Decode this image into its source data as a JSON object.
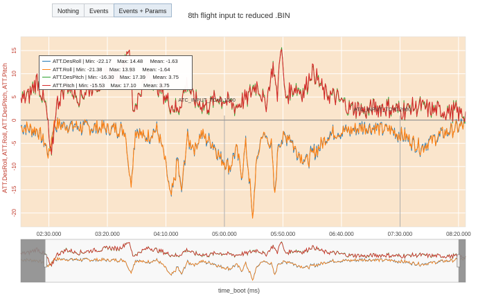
{
  "toolbar": {
    "buttons": [
      {
        "label": "Nothing",
        "active": false
      },
      {
        "label": "Events",
        "active": false
      },
      {
        "label": "Events + Params",
        "active": true
      }
    ]
  },
  "chart_data": {
    "type": "line",
    "title": "8th flight input tc reduced .BIN",
    "xlabel": "time_boot (ms)",
    "ylabel": "ATT.DesRoll, ATT.Roll, ATT.DesPitch, ATT.Pitch",
    "xlim": [
      "02:06.000",
      "08:26.000"
    ],
    "ylim": [
      -23,
      18
    ],
    "x_ticks": [
      "02:30.000",
      "03:20.000",
      "04:10.000",
      "05:00.000",
      "05:50.000",
      "06:40.000",
      "07:30.000",
      "08:20.000"
    ],
    "y_ticks": [
      15,
      10,
      5,
      0,
      -5,
      -10,
      -15,
      -20
    ],
    "grid": true,
    "background": "#fae5cc",
    "legend_position": "top-left",
    "series": [
      {
        "name": "ATT.DesRoll",
        "legend_text": "ATT.DesRoll | Min: -22.17    Max: 14.48     Mean: -1.63",
        "color": "#1f77b4",
        "min": -22.17,
        "max": 14.48,
        "mean": -1.63
      },
      {
        "name": "ATT.Roll",
        "legend_text": "ATT.Roll | Min: -21.38     Max: 13.93     Mean: -1.64",
        "color": "#ff7f0e",
        "min": -21.38,
        "max": 13.93,
        "mean": -1.64
      },
      {
        "name": "ATT.DesPitch",
        "legend_text": "ATT.DesPitch | Min: -16.30    Max: 17.39     Mean: 3.75",
        "color": "#2ca02c",
        "min": -16.3,
        "max": 17.39,
        "mean": 3.75
      },
      {
        "name": "ATT.Pitch",
        "legend_text": "ATT.Pitch | Min: -15.53    Max: 17.10     Mean: 3.75",
        "color": "#d62728",
        "min": -15.53,
        "max": 17.1,
        "mean": 3.75
      }
    ],
    "roll_keypoints": [
      [
        "02:06",
        -1.5
      ],
      [
        "02:20",
        -2
      ],
      [
        "02:27",
        -5
      ],
      [
        "02:30",
        -8
      ],
      [
        "02:34",
        -1
      ],
      [
        "03:00",
        -1.5
      ],
      [
        "03:35",
        -2
      ],
      [
        "03:40",
        -14
      ],
      [
        "03:44",
        -2
      ],
      [
        "03:52",
        -4
      ],
      [
        "04:02",
        -2
      ],
      [
        "04:07",
        -6
      ],
      [
        "04:10",
        -10
      ],
      [
        "04:14",
        -17
      ],
      [
        "04:18",
        -12
      ],
      [
        "04:20",
        -8
      ],
      [
        "04:23",
        -16
      ],
      [
        "04:28",
        -4
      ],
      [
        "04:35",
        -6
      ],
      [
        "04:40",
        -3
      ],
      [
        "04:50",
        -5
      ],
      [
        "04:56",
        -8
      ],
      [
        "05:05",
        -10
      ],
      [
        "05:10",
        -6
      ],
      [
        "05:15",
        -12
      ],
      [
        "05:18",
        -5
      ],
      [
        "05:22",
        -14
      ],
      [
        "05:24",
        -22
      ],
      [
        "05:27",
        -10
      ],
      [
        "05:32",
        -3
      ],
      [
        "05:40",
        -5
      ],
      [
        "05:43",
        -17
      ],
      [
        "05:46",
        -5
      ],
      [
        "05:55",
        -3
      ],
      [
        "06:00",
        -6
      ],
      [
        "06:10",
        -9
      ],
      [
        "06:30",
        -3
      ],
      [
        "07:00",
        -1.5
      ],
      [
        "07:20",
        -2
      ],
      [
        "07:38",
        -4
      ],
      [
        "07:48",
        -6
      ],
      [
        "08:05",
        -3
      ],
      [
        "08:26",
        -1
      ]
    ],
    "pitch_keypoints": [
      [
        "02:06",
        4
      ],
      [
        "02:15",
        6
      ],
      [
        "02:20",
        9
      ],
      [
        "02:28",
        2
      ],
      [
        "02:32",
        -9
      ],
      [
        "02:36",
        3
      ],
      [
        "02:45",
        8
      ],
      [
        "02:55",
        5
      ],
      [
        "03:05",
        7
      ],
      [
        "03:15",
        8
      ],
      [
        "03:20",
        10
      ],
      [
        "03:30",
        9
      ],
      [
        "03:38",
        16
      ],
      [
        "03:42",
        2
      ],
      [
        "03:48",
        6
      ],
      [
        "03:55",
        10
      ],
      [
        "04:05",
        7
      ],
      [
        "04:12",
        4
      ],
      [
        "04:20",
        2
      ],
      [
        "04:28",
        8
      ],
      [
        "04:35",
        4
      ],
      [
        "04:45",
        3
      ],
      [
        "04:55",
        5
      ],
      [
        "05:02",
        4
      ],
      [
        "05:10",
        3
      ],
      [
        "05:20",
        5
      ],
      [
        "05:28",
        8
      ],
      [
        "05:35",
        3
      ],
      [
        "05:42",
        12
      ],
      [
        "05:45",
        4
      ],
      [
        "05:48",
        17
      ],
      [
        "05:52",
        5
      ],
      [
        "06:00",
        7
      ],
      [
        "06:08",
        6
      ],
      [
        "06:15",
        11
      ],
      [
        "06:25",
        6
      ],
      [
        "06:35",
        5
      ],
      [
        "06:45",
        3
      ],
      [
        "07:00",
        2
      ],
      [
        "07:15",
        3
      ],
      [
        "07:30",
        2
      ],
      [
        "07:45",
        3
      ],
      [
        "08:00",
        2
      ],
      [
        "08:15",
        2
      ],
      [
        "08:26",
        1
      ]
    ],
    "annotations": [
      {
        "text": "ATC_INPUT_TC=0.1000",
        "x": "04:45.000",
        "y": 4
      },
      {
        "text": "ATC_INPUT_TC=0.2000",
        "x": "07:15.000",
        "y": 2
      }
    ],
    "event_lines": [
      "05:00.000",
      "07:30.000"
    ],
    "range_selector": {
      "selected": [
        "02:27.000",
        "08:20.000"
      ]
    }
  }
}
